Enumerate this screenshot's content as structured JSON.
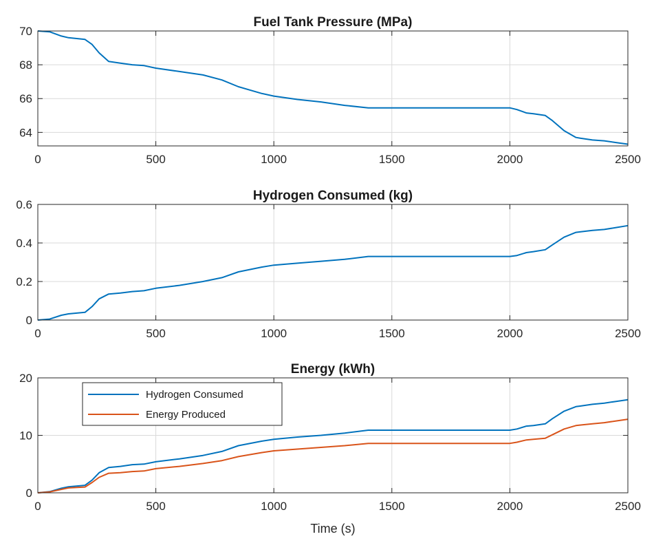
{
  "figure": {
    "colors": {
      "series_blue": "#0072BD",
      "series_orange": "#D95319",
      "grid": "#d9d9d9",
      "axes": "#262626"
    }
  },
  "chart_data": [
    {
      "type": "line",
      "title": "Fuel Tank Pressure (MPa)",
      "xlabel": "",
      "ylabel": "",
      "xlim": [
        0,
        2500
      ],
      "ylim": [
        63.2,
        70
      ],
      "xticks": [
        0,
        500,
        1000,
        1500,
        2000,
        2500
      ],
      "yticks": [
        64,
        66,
        68,
        70
      ],
      "grid": true,
      "series": [
        {
          "color": "#0072BD",
          "x": [
            0,
            50,
            100,
            130,
            200,
            230,
            260,
            300,
            350,
            400,
            450,
            500,
            600,
            700,
            780,
            850,
            950,
            1000,
            1100,
            1200,
            1300,
            1400,
            1500,
            1700,
            1900,
            2000,
            2030,
            2070,
            2100,
            2150,
            2180,
            2230,
            2280,
            2300,
            2350,
            2400,
            2450,
            2500
          ],
          "y": [
            70,
            69.95,
            69.7,
            69.6,
            69.5,
            69.2,
            68.7,
            68.2,
            68.1,
            68.0,
            67.95,
            67.8,
            67.6,
            67.4,
            67.1,
            66.7,
            66.3,
            66.15,
            65.95,
            65.8,
            65.6,
            65.45,
            65.45,
            65.45,
            65.45,
            65.45,
            65.35,
            65.15,
            65.1,
            65.0,
            64.7,
            64.1,
            63.7,
            63.65,
            63.55,
            63.5,
            63.4,
            63.3
          ]
        }
      ]
    },
    {
      "type": "line",
      "title": "Hydrogen Consumed (kg)",
      "xlabel": "",
      "ylabel": "",
      "xlim": [
        0,
        2500
      ],
      "ylim": [
        0,
        0.6
      ],
      "xticks": [
        0,
        500,
        1000,
        1500,
        2000,
        2500
      ],
      "yticks": [
        0,
        0.2,
        0.4,
        0.6
      ],
      "grid": true,
      "series": [
        {
          "color": "#0072BD",
          "x": [
            0,
            50,
            100,
            130,
            200,
            230,
            260,
            300,
            350,
            400,
            450,
            500,
            600,
            700,
            780,
            850,
            950,
            1000,
            1100,
            1200,
            1300,
            1400,
            1500,
            1700,
            1900,
            2000,
            2030,
            2070,
            2100,
            2150,
            2180,
            2230,
            2280,
            2300,
            2350,
            2400,
            2450,
            2500
          ],
          "y": [
            0,
            0.005,
            0.025,
            0.032,
            0.04,
            0.07,
            0.11,
            0.135,
            0.14,
            0.148,
            0.152,
            0.165,
            0.18,
            0.2,
            0.22,
            0.25,
            0.275,
            0.285,
            0.295,
            0.305,
            0.315,
            0.33,
            0.33,
            0.33,
            0.33,
            0.33,
            0.335,
            0.35,
            0.355,
            0.365,
            0.39,
            0.43,
            0.455,
            0.458,
            0.465,
            0.47,
            0.48,
            0.49
          ]
        }
      ]
    },
    {
      "type": "line",
      "title": "Energy (kWh)",
      "xlabel": "Time (s)",
      "ylabel": "",
      "xlim": [
        0,
        2500
      ],
      "ylim": [
        0,
        20
      ],
      "xticks": [
        0,
        500,
        1000,
        1500,
        2000,
        2500
      ],
      "yticks": [
        0,
        10,
        20
      ],
      "grid": true,
      "legend": "top-left",
      "series": [
        {
          "name": "Hydrogen Consumed",
          "color": "#0072BD",
          "x": [
            0,
            50,
            100,
            130,
            200,
            230,
            260,
            300,
            350,
            400,
            450,
            500,
            600,
            700,
            780,
            850,
            950,
            1000,
            1100,
            1200,
            1300,
            1400,
            1500,
            1700,
            1900,
            2000,
            2030,
            2070,
            2100,
            2150,
            2180,
            2230,
            2280,
            2300,
            2350,
            2400,
            2450,
            2500
          ],
          "y": [
            0,
            0.2,
            0.8,
            1.05,
            1.3,
            2.2,
            3.5,
            4.4,
            4.6,
            4.9,
            5.0,
            5.4,
            5.9,
            6.5,
            7.2,
            8.2,
            9.0,
            9.3,
            9.7,
            10.0,
            10.4,
            10.9,
            10.9,
            10.9,
            10.9,
            10.9,
            11.1,
            11.6,
            11.7,
            12.0,
            12.9,
            14.2,
            15.0,
            15.1,
            15.4,
            15.6,
            15.9,
            16.2
          ]
        },
        {
          "name": "Energy Produced",
          "color": "#D95319",
          "x": [
            0,
            50,
            100,
            130,
            200,
            230,
            260,
            300,
            350,
            400,
            450,
            500,
            600,
            700,
            780,
            850,
            950,
            1000,
            1100,
            1200,
            1300,
            1400,
            1500,
            1700,
            1900,
            2000,
            2030,
            2070,
            2100,
            2150,
            2180,
            2230,
            2280,
            2300,
            2350,
            2400,
            2450,
            2500
          ],
          "y": [
            0,
            0.15,
            0.6,
            0.85,
            1.0,
            1.8,
            2.7,
            3.4,
            3.5,
            3.7,
            3.8,
            4.2,
            4.6,
            5.1,
            5.6,
            6.3,
            7.0,
            7.3,
            7.6,
            7.9,
            8.2,
            8.6,
            8.6,
            8.6,
            8.6,
            8.6,
            8.8,
            9.2,
            9.3,
            9.5,
            10.1,
            11.1,
            11.7,
            11.8,
            12.0,
            12.2,
            12.5,
            12.8
          ]
        }
      ]
    }
  ]
}
